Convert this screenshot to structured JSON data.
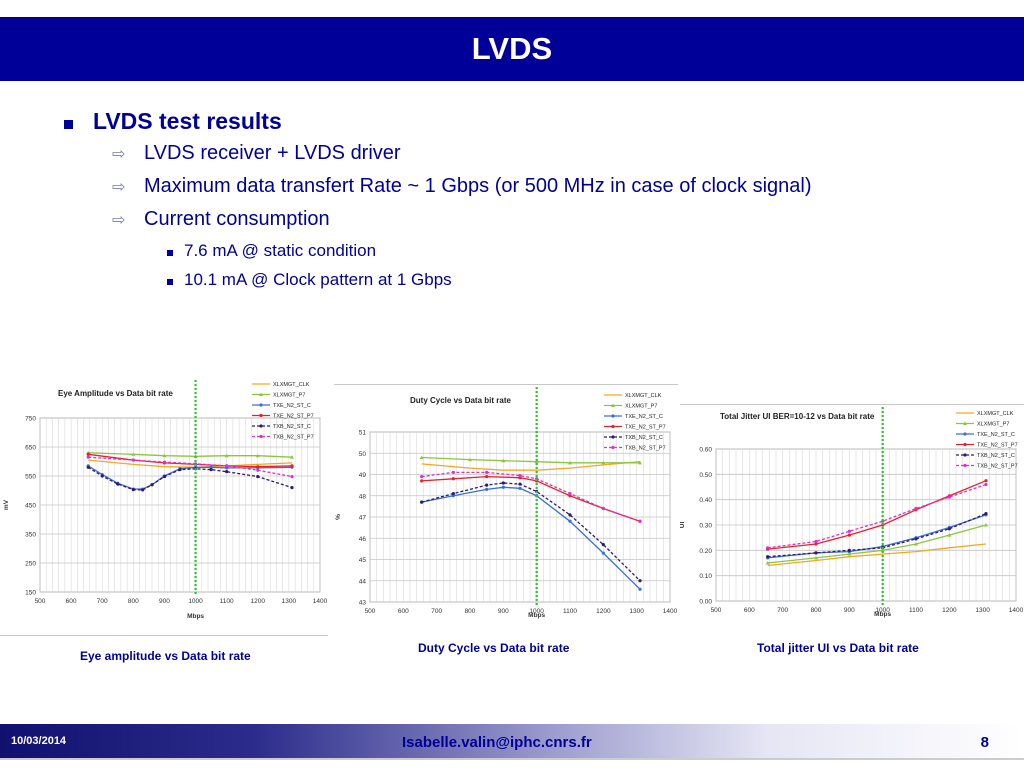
{
  "slide": {
    "title": "LVDS",
    "bullets": [
      {
        "level": 1,
        "text": "LVDS test results"
      },
      {
        "level": 2,
        "text": "LVDS receiver + LVDS driver"
      },
      {
        "level": 2,
        "text": "Maximum data transfert Rate ~ 1 Gbps (or 500 MHz in case of clock signal)"
      },
      {
        "level": 2,
        "text": "Current consumption"
      },
      {
        "level": 3,
        "text": "7.6 mA @ static condition"
      },
      {
        "level": 3,
        "text": "10.1 mA @ Clock pattern at 1 Gbps"
      }
    ],
    "captions": [
      "Eye amplitude vs Data bit rate",
      "Duty Cycle vs Data bit rate",
      "Total jitter UI vs Data bit rate"
    ],
    "footer": {
      "date": "10/03/2014",
      "email": "Isabelle.valin@iphc.cnrs.fr",
      "page": "8"
    }
  },
  "legend_series": [
    {
      "name": "XLXMGT_CLK",
      "color": "#f5a623",
      "dash": "solid",
      "marker": "none"
    },
    {
      "name": "XLXMGT_P7",
      "color": "#8cc63f",
      "dash": "solid",
      "marker": "tri"
    },
    {
      "name": "TXE_N2_ST_C",
      "color": "#3b6fd6",
      "dash": "solid",
      "marker": "dot"
    },
    {
      "name": "TXE_N2_ST_P7",
      "color": "#e8202a",
      "dash": "solid",
      "marker": "dot"
    },
    {
      "name": "TXB_N2_ST_C",
      "color": "#2d1d6b",
      "dash": "dash",
      "marker": "dot"
    },
    {
      "name": "TXB_N2_ST_P7",
      "color": "#e030c8",
      "dash": "dash",
      "marker": "dot"
    }
  ],
  "chart_data": [
    {
      "type": "line",
      "title": "Eye Amplitude vs Data bit rate",
      "xlabel": "Mbps",
      "ylabel": "mV",
      "xlim": [
        500,
        1400
      ],
      "ylim": [
        150,
        750
      ],
      "xticks": [
        500,
        600,
        700,
        800,
        900,
        1000,
        1100,
        1200,
        1300,
        1400
      ],
      "yticks": [
        150,
        250,
        350,
        450,
        550,
        650,
        750
      ],
      "vline_x": 1000,
      "grid": true,
      "legend": "top-right",
      "series": [
        {
          "name": "XLXMGT_CLK",
          "x": [
            655,
            800,
            900,
            1000,
            1100,
            1200,
            1310
          ],
          "y": [
            605,
            590,
            582,
            580,
            585,
            590,
            595
          ]
        },
        {
          "name": "XLXMGT_P7",
          "x": [
            655,
            800,
            900,
            1000,
            1100,
            1200,
            1310
          ],
          "y": [
            630,
            625,
            620,
            618,
            620,
            620,
            615
          ]
        },
        {
          "name": "TXE_N2_ST_C",
          "x": [
            655,
            700,
            750,
            800,
            830,
            860,
            900,
            950,
            1000,
            1050,
            1100,
            1200,
            1310
          ],
          "y": [
            585,
            555,
            525,
            505,
            505,
            520,
            550,
            575,
            580,
            580,
            578,
            578,
            580
          ]
        },
        {
          "name": "TXE_N2_ST_P7",
          "x": [
            655,
            800,
            900,
            1000,
            1100,
            1200,
            1310
          ],
          "y": [
            625,
            605,
            595,
            590,
            585,
            582,
            585
          ]
        },
        {
          "name": "TXB_N2_ST_C",
          "x": [
            655,
            700,
            750,
            800,
            830,
            860,
            900,
            950,
            1000,
            1050,
            1100,
            1200,
            1310
          ],
          "y": [
            580,
            550,
            522,
            503,
            502,
            520,
            548,
            572,
            575,
            572,
            565,
            548,
            510
          ]
        },
        {
          "name": "TXB_N2_ST_P7",
          "x": [
            655,
            800,
            900,
            1000,
            1100,
            1200,
            1310
          ],
          "y": [
            615,
            605,
            598,
            592,
            585,
            570,
            548
          ]
        }
      ]
    },
    {
      "type": "line",
      "title": "Duty Cycle vs Data bit rate",
      "xlabel": "Mbps",
      "ylabel": "%",
      "xlim": [
        500,
        1400
      ],
      "ylim": [
        43,
        51
      ],
      "xticks": [
        500,
        600,
        700,
        800,
        900,
        1000,
        1100,
        1200,
        1300,
        1400
      ],
      "yticks": [
        43,
        44,
        45,
        46,
        47,
        48,
        49,
        50,
        51
      ],
      "vline_x": 1000,
      "grid": true,
      "legend": "top-right",
      "series": [
        {
          "name": "XLXMGT_CLK",
          "x": [
            655,
            800,
            900,
            1000,
            1100,
            1200,
            1310
          ],
          "y": [
            49.5,
            49.3,
            49.2,
            49.2,
            49.3,
            49.45,
            49.6
          ]
        },
        {
          "name": "XLXMGT_P7",
          "x": [
            655,
            800,
            900,
            1000,
            1100,
            1200,
            1310
          ],
          "y": [
            49.8,
            49.7,
            49.65,
            49.6,
            49.55,
            49.55,
            49.55
          ]
        },
        {
          "name": "TXE_N2_ST_C",
          "x": [
            655,
            750,
            850,
            900,
            950,
            1000,
            1100,
            1200,
            1310
          ],
          "y": [
            47.7,
            48.0,
            48.3,
            48.4,
            48.35,
            48.0,
            46.8,
            45.3,
            43.6
          ]
        },
        {
          "name": "TXE_N2_ST_P7",
          "x": [
            655,
            750,
            850,
            950,
            1000,
            1100,
            1200,
            1310
          ],
          "y": [
            48.7,
            48.8,
            48.9,
            48.85,
            48.7,
            48.0,
            47.4,
            46.8
          ]
        },
        {
          "name": "TXB_N2_ST_C",
          "x": [
            655,
            750,
            850,
            900,
            950,
            1000,
            1100,
            1200,
            1310
          ],
          "y": [
            47.7,
            48.1,
            48.5,
            48.6,
            48.55,
            48.2,
            47.1,
            45.7,
            44.0
          ]
        },
        {
          "name": "TXB_N2_ST_P7",
          "x": [
            655,
            750,
            850,
            950,
            1000,
            1100,
            1200,
            1310
          ],
          "y": [
            48.9,
            49.1,
            49.1,
            48.95,
            48.8,
            48.1,
            47.4,
            46.8
          ]
        }
      ]
    },
    {
      "type": "line",
      "title": "Total Jitter UI BER=10-12 vs Data bit rate",
      "xlabel": "Mbps",
      "ylabel": "UI",
      "xlim": [
        500,
        1400
      ],
      "ylim": [
        0.0,
        0.6
      ],
      "xticks": [
        500,
        600,
        700,
        800,
        900,
        1000,
        1100,
        1200,
        1300,
        1400
      ],
      "yticks": [
        0.0,
        0.1,
        0.2,
        0.3,
        0.4,
        0.5,
        0.6
      ],
      "vline_x": 1000,
      "grid": true,
      "legend": "top-right",
      "series": [
        {
          "name": "XLXMGT_CLK",
          "x": [
            655,
            800,
            900,
            1000,
            1100,
            1200,
            1310
          ],
          "y": [
            0.14,
            0.16,
            0.175,
            0.185,
            0.195,
            0.21,
            0.225
          ]
        },
        {
          "name": "XLXMGT_P7",
          "x": [
            655,
            800,
            900,
            1000,
            1100,
            1200,
            1310
          ],
          "y": [
            0.15,
            0.17,
            0.185,
            0.2,
            0.225,
            0.26,
            0.3
          ]
        },
        {
          "name": "TXE_N2_ST_C",
          "x": [
            655,
            800,
            900,
            1000,
            1100,
            1200,
            1310
          ],
          "y": [
            0.17,
            0.19,
            0.195,
            0.215,
            0.25,
            0.29,
            0.34
          ]
        },
        {
          "name": "TXE_N2_ST_P7",
          "x": [
            655,
            800,
            900,
            1000,
            1100,
            1200,
            1310
          ],
          "y": [
            0.205,
            0.225,
            0.26,
            0.3,
            0.36,
            0.415,
            0.475
          ]
        },
        {
          "name": "TXB_N2_ST_C",
          "x": [
            655,
            800,
            900,
            1000,
            1100,
            1200,
            1310
          ],
          "y": [
            0.175,
            0.19,
            0.2,
            0.21,
            0.245,
            0.285,
            0.345
          ]
        },
        {
          "name": "TXB_N2_ST_P7",
          "x": [
            655,
            800,
            900,
            1000,
            1100,
            1200,
            1310
          ],
          "y": [
            0.21,
            0.235,
            0.275,
            0.315,
            0.365,
            0.41,
            0.46
          ]
        }
      ]
    }
  ]
}
